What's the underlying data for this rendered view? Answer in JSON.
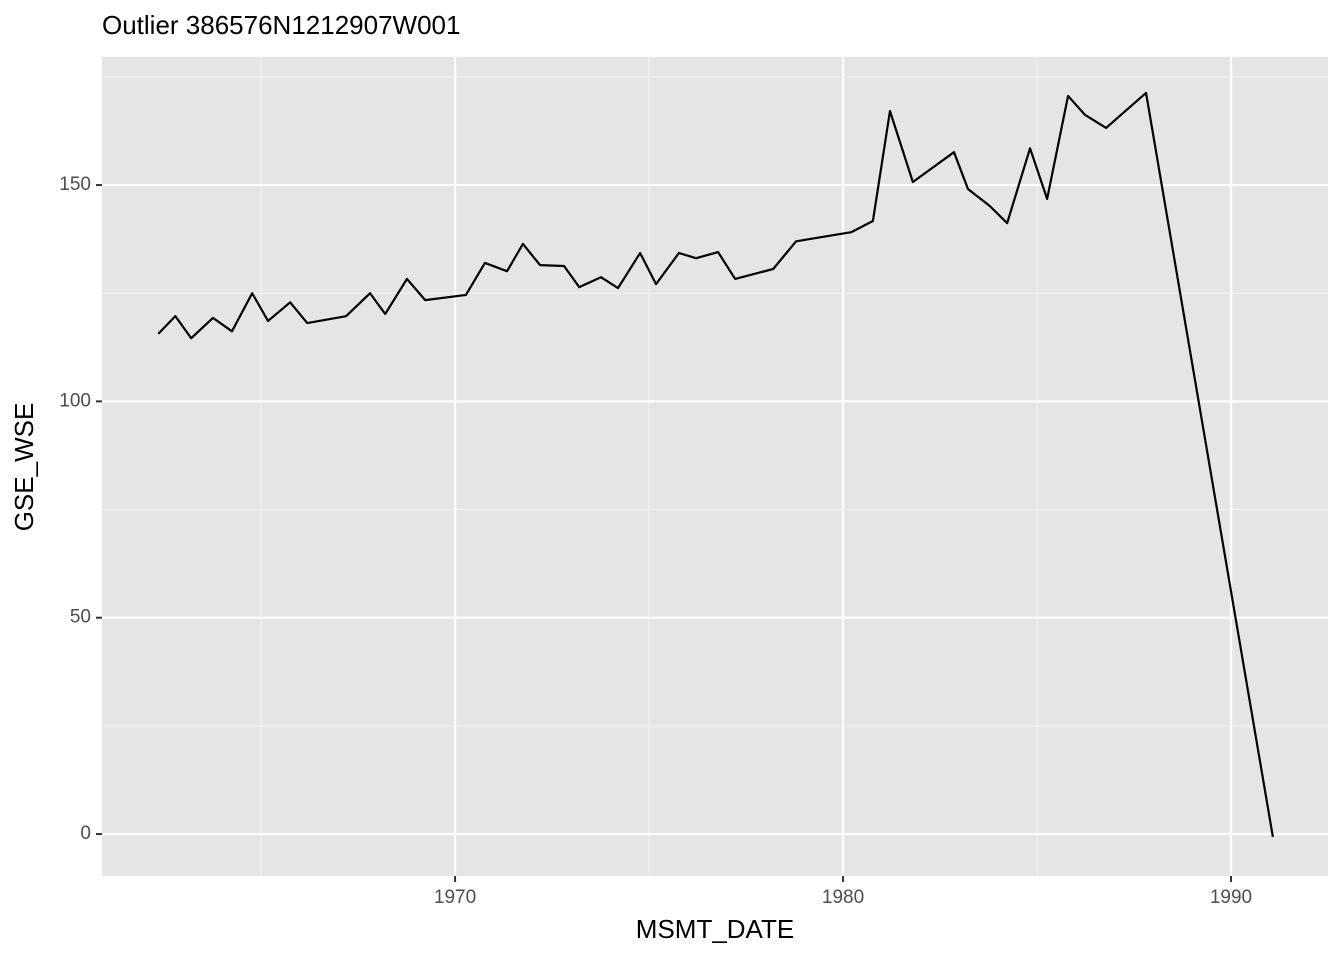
{
  "chart_data": {
    "type": "line",
    "title": "Outlier 386576N1212907W001",
    "x_label": "MSMT_DATE",
    "y_label": "GSE_WSE",
    "x": [
      1962.35,
      1962.79,
      1963.2,
      1963.76,
      1964.25,
      1964.77,
      1965.18,
      1965.75,
      1966.19,
      1967.19,
      1967.81,
      1968.2,
      1968.76,
      1969.23,
      1970.28,
      1970.77,
      1971.34,
      1971.75,
      1972.19,
      1972.81,
      1973.2,
      1973.76,
      1974.2,
      1974.77,
      1975.18,
      1975.77,
      1976.21,
      1976.78,
      1977.22,
      1978.2,
      1978.79,
      1980.21,
      1980.77,
      1981.21,
      1981.8,
      1982.86,
      1983.22,
      1983.79,
      1984.23,
      1984.82,
      1985.26,
      1985.8,
      1986.24,
      1986.78,
      1987.81,
      1991.08
    ],
    "values": [
      115.6,
      119.7,
      114.6,
      119.3,
      116.2,
      125.0,
      118.6,
      122.9,
      118.1,
      119.7,
      125.0,
      120.2,
      128.3,
      123.4,
      124.6,
      132.0,
      130.1,
      136.4,
      131.5,
      131.3,
      126.4,
      128.7,
      126.2,
      134.3,
      127.1,
      134.3,
      133.1,
      134.5,
      128.3,
      130.6,
      137.0,
      139.1,
      141.7,
      167.1,
      150.7,
      157.6,
      149.1,
      145.1,
      141.2,
      158.5,
      146.8,
      170.6,
      166.2,
      163.2,
      171.3,
      -0.7
    ],
    "color": "#000000",
    "xlim": [
      1960.9,
      1992.5
    ],
    "xticks": [
      1970,
      1980,
      1990
    ],
    "x_minor_ticks": [
      1965,
      1975,
      1985
    ],
    "ylim": [
      -9.7,
      179.6
    ],
    "yticks": [
      0,
      50,
      100,
      150
    ],
    "y_minor_ticks": [
      25,
      75,
      125,
      175
    ],
    "grid": true
  }
}
